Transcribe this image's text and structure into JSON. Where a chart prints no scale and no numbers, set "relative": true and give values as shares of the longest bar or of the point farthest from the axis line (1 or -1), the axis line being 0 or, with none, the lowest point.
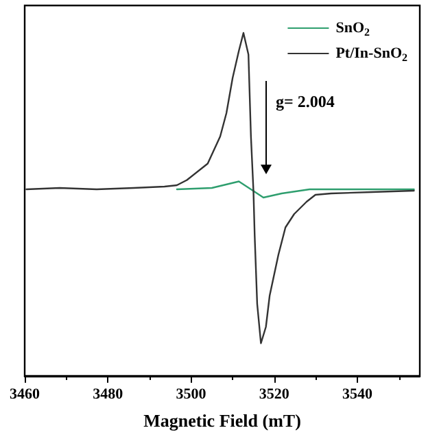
{
  "chart_data": {
    "type": "line",
    "relative": true,
    "xlabel": "Magnetic Field (mT)",
    "xlim": [
      3460,
      3555
    ],
    "xticks": [
      3460,
      3480,
      3500,
      3520,
      3540
    ],
    "tick_labels": "x",
    "legend": "top right",
    "marker": "none",
    "grid": false,
    "annotations": [
      "g= 2.004"
    ],
    "series": [
      {
        "name": "SnO$_{2}$",
        "color": "#2e9e6e",
        "x": [
          3496.6,
          3505,
          3511.5,
          3514.4,
          3517.4,
          3521.8,
          3528.5,
          3540,
          3553.6
        ],
        "values": [
          0.544,
          0.548,
          0.567,
          0.544,
          0.52,
          0.532,
          0.544,
          0.544,
          0.544
        ]
      },
      {
        "name": "Pt/In-SnO$_{2}$",
        "color": "#333333",
        "x": [
          3460.4,
          3468.4,
          3477.3,
          3486.2,
          3493.6,
          3496.6,
          3499.0,
          3504.0,
          3507.0,
          3508.5,
          3510.0,
          3511.5,
          3512.6,
          3513.8,
          3514.4,
          3515.0,
          3515.3,
          3515.9,
          3516.8,
          3518.0,
          3518.9,
          3521.0,
          3522.7,
          3524.8,
          3527.8,
          3529.9,
          3533.7,
          3543.5,
          3553.6
        ],
        "values": [
          0.544,
          0.548,
          0.544,
          0.548,
          0.552,
          0.556,
          0.571,
          0.619,
          0.698,
          0.766,
          0.869,
          0.948,
          1,
          0.937,
          0.698,
          0.54,
          0.409,
          0.21,
          0.095,
          0.143,
          0.234,
          0.353,
          0.433,
          0.472,
          0.508,
          0.528,
          0.532,
          0.536,
          0.54
        ]
      }
    ]
  }
}
